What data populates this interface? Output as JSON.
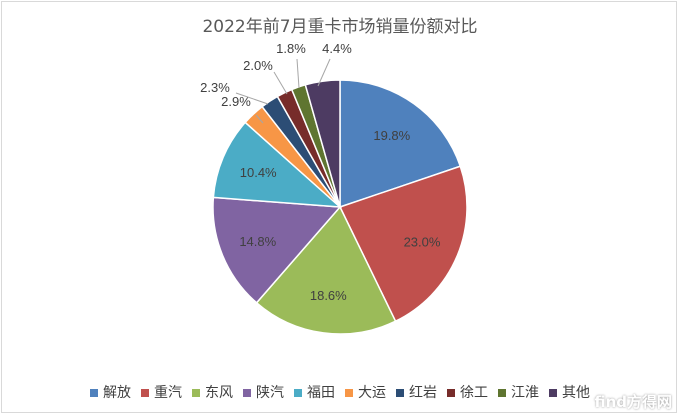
{
  "chart_data": {
    "type": "pie",
    "title": "2022年前7月重卡市场销量份额对比",
    "categories": [
      "解放",
      "重汽",
      "东风",
      "陕汽",
      "福田",
      "大运",
      "红岩",
      "徐工",
      "江淮",
      "其他"
    ],
    "values": [
      19.8,
      23.0,
      18.6,
      14.8,
      10.4,
      2.9,
      2.3,
      2.0,
      1.8,
      4.4
    ],
    "value_labels": [
      "19.8%",
      "23.0%",
      "18.6%",
      "14.8%",
      "10.4%",
      "2.9%",
      "2.3%",
      "2.0%",
      "1.8%",
      "4.4%"
    ],
    "colors": [
      "#4f81bd",
      "#c0504d",
      "#9bbb59",
      "#8064a2",
      "#4bacc6",
      "#f79646",
      "#2c4d75",
      "#772c2a",
      "#5f7530",
      "#4d3b62"
    ],
    "legend_position": "bottom",
    "start_angle": "12 o'clock",
    "direction": "clockwise"
  },
  "watermark": "find方得网"
}
